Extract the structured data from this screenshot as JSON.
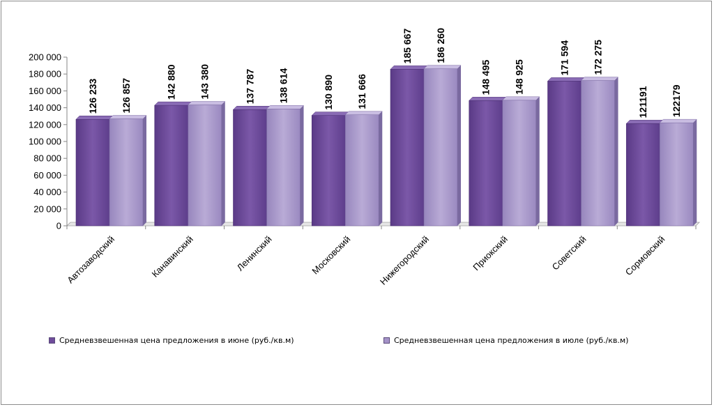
{
  "chart_data": {
    "type": "bar",
    "categories": [
      "Автозаводский",
      "Канавинский",
      "Ленинский",
      "Московский",
      "Нижегородский",
      "Приокский",
      "Советский",
      "Сормовский"
    ],
    "series": [
      {
        "name": "Средневзвешенная цена предложения в июне (руб./кв.м)",
        "values": [
          126233,
          142880,
          137787,
          130890,
          185667,
          148495,
          171594,
          121191
        ],
        "labels": [
          "126 233",
          "142 880",
          "137 787",
          "130 890",
          "185 667",
          "148 495",
          "171 594",
          "121191"
        ],
        "color": "#6f4c9b"
      },
      {
        "name": "Средневзвешенная цена предложения в июле (руб./кв.м)",
        "values": [
          126857,
          143380,
          138614,
          131666,
          186260,
          148925,
          172275,
          122179
        ],
        "labels": [
          "126 857",
          "143 380",
          "138 614",
          "131 666",
          "186 260",
          "148 925",
          "172 275",
          "122179"
        ],
        "color": "#a593c8"
      }
    ],
    "ylim": [
      0,
      200000
    ],
    "yticks": [
      0,
      20000,
      40000,
      60000,
      80000,
      100000,
      120000,
      140000,
      160000,
      180000,
      200000
    ],
    "ytick_labels": [
      "0",
      "20 000",
      "40 000",
      "60 000",
      "80 000",
      "100 000",
      "120 000",
      "140 000",
      "160 000",
      "180 000",
      "200 000"
    ],
    "grid": false,
    "legend_position": "bottom"
  }
}
